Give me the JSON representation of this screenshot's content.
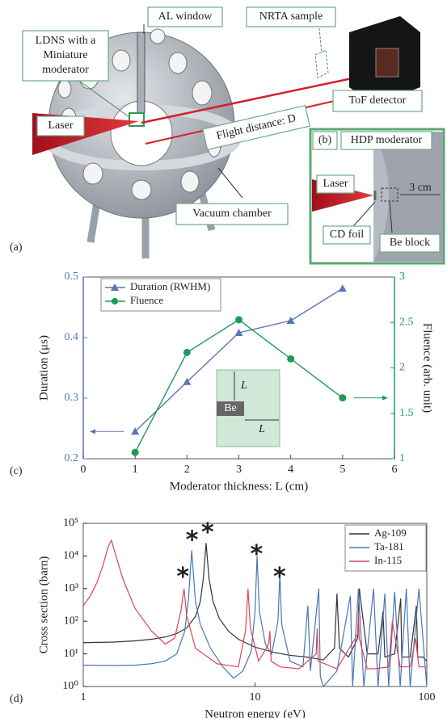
{
  "figure_a": {
    "label": "(a)",
    "ldns": [
      "LDNS with a",
      "Miniature",
      "moderator"
    ],
    "al_window": "AL window",
    "nrta_sample": "NRTA sample",
    "laser": "Laser",
    "flight_distance": "Flight distance: D",
    "tof_detector": "ToF detector",
    "vacuum_chamber": "Vacuum chamber"
  },
  "figure_b": {
    "label": "(b)",
    "hdp_moderator": "HDP moderator",
    "laser": "Laser",
    "length": "3 cm",
    "cd_foil": "CD foil",
    "be_block": "Be block"
  },
  "chart_data": [
    {
      "type": "line",
      "panel_label": "(c)",
      "xlabel": "Moderator thickness: L (cm)",
      "ylabel": "Duration (μs)",
      "y2label": "Fluence (arb. unit)",
      "x": [
        1,
        2,
        3,
        4,
        5
      ],
      "series": [
        {
          "name": "Duration (RWHM)",
          "color": "#5a73b8",
          "marker": "triangle",
          "values": [
            0.245,
            0.327,
            0.408,
            0.428,
            0.481
          ]
        },
        {
          "name": "Fluence",
          "color": "#1f9a5c",
          "marker": "circle",
          "axis": "y2",
          "values": [
            1.07,
            2.17,
            2.53,
            2.1,
            1.67
          ]
        }
      ],
      "xlim": [
        0,
        6
      ],
      "xticks": [
        0,
        1,
        2,
        3,
        4,
        5,
        6
      ],
      "ylim": [
        0.2,
        0.5
      ],
      "yticks": [
        0.2,
        0.3,
        0.4,
        0.5
      ],
      "y2lim": [
        1,
        3
      ],
      "y2ticks": [
        1,
        1.5,
        2,
        2.5,
        3
      ],
      "legend": "upper left",
      "inset_labels": [
        "L",
        "L",
        "Be"
      ]
    },
    {
      "type": "line",
      "panel_label": "(d)",
      "xlabel": "Neutron energy (eV)",
      "ylabel": "Cross section (barn)",
      "xscale": "log",
      "yscale": "log",
      "xlim": [
        1,
        100
      ],
      "xticks": [
        1,
        10,
        100
      ],
      "ylim": [
        1,
        100000
      ],
      "yticks": [
        {
          "value": 1,
          "label": "10⁰"
        },
        {
          "value": 10,
          "label": "10¹"
        },
        {
          "value": 100,
          "label": "10²"
        },
        {
          "value": 1000,
          "label": "10³"
        },
        {
          "value": 10000,
          "label": "10⁴"
        },
        {
          "value": 100000,
          "label": "10⁵"
        }
      ],
      "series": [
        {
          "name": "Ag-109",
          "color": "#333333",
          "x": [
            1,
            1.5,
            2,
            2.5,
            3,
            3.5,
            4,
            4.5,
            4.8,
            5.0,
            5.19,
            5.4,
            5.7,
            6.2,
            7,
            8,
            10,
            13,
            16,
            20,
            25,
            29,
            30,
            31,
            35,
            39.6,
            40.5,
            45,
            52,
            55.6,
            57,
            65,
            70.5,
            71.5,
            80,
            87,
            88.5,
            95,
            100
          ],
          "values": [
            22,
            23,
            25,
            28,
            33,
            42,
            62,
            140,
            400,
            2000,
            25000,
            2000,
            400,
            120,
            50,
            28,
            16,
            11,
            9,
            8,
            6.5,
            15,
            700,
            15,
            8,
            30,
            1000,
            10,
            10,
            200,
            8,
            10,
            500,
            8,
            8,
            300,
            8,
            8,
            6
          ]
        },
        {
          "name": "Ta-181",
          "color": "#4a76b4",
          "x": [
            1,
            1.5,
            2,
            2.5,
            3,
            3.5,
            3.9,
            4.1,
            4.28,
            4.5,
            4.8,
            5.5,
            6.5,
            7.5,
            8.5,
            9.5,
            10.0,
            10.28,
            10.6,
            11.5,
            12.5,
            13.6,
            13.95,
            14.3,
            16,
            19,
            20.3,
            21,
            23.5,
            24,
            25,
            30,
            35.9,
            37,
            40,
            43,
            49,
            52,
            57,
            60,
            65,
            70,
            76,
            80,
            90,
            100
          ],
          "values": [
            4.5,
            4.4,
            4.5,
            5,
            6,
            10,
            50,
            500,
            15000,
            400,
            80,
            15,
            4,
            1.8,
            3,
            12,
            200,
            10000,
            200,
            20,
            10,
            100,
            3000,
            80,
            6,
            4,
            300,
            3,
            1000,
            2,
            1,
            3,
            600,
            1,
            1000,
            1,
            1000,
            1,
            700,
            1,
            800,
            1,
            1000,
            1,
            1000,
            1
          ]
        },
        {
          "name": "In-115",
          "color": "#d9465a",
          "x": [
            1,
            1.1,
            1.2,
            1.3,
            1.4,
            1.46,
            1.55,
            1.7,
            2,
            2.5,
            3,
            3.4,
            3.7,
            3.86,
            4.0,
            4.5,
            6,
            8,
            8.8,
            9.1,
            9.4,
            10.5,
            12,
            12.2,
            12.4,
            14,
            18,
            22.7,
            23,
            23.3,
            30,
            39.6,
            40,
            40.4,
            45,
            50,
            60,
            63,
            70,
            80,
            86,
            90,
            100
          ],
          "values": [
            300,
            600,
            1500,
            5000,
            20000,
            30000,
            10000,
            2000,
            250,
            50,
            20,
            30,
            200,
            1000,
            150,
            15,
            5,
            4,
            50,
            1000,
            60,
            6,
            20,
            50,
            6,
            4,
            3.5,
            10,
            60,
            6,
            3.5,
            40,
            200,
            30,
            3.5,
            3.5,
            4,
            100,
            4,
            4,
            30,
            4,
            4
          ]
        }
      ],
      "legend": "upper right",
      "annotations": [
        {
          "text": "*",
          "x": 3.8,
          "y": 3000
        },
        {
          "text": "*",
          "x": 4.3,
          "y": 40000
        },
        {
          "text": "*",
          "x": 5.3,
          "y": 70000
        },
        {
          "text": "*",
          "x": 10.2,
          "y": 15000
        },
        {
          "text": "*",
          "x": 13.9,
          "y": 3000
        }
      ]
    }
  ]
}
